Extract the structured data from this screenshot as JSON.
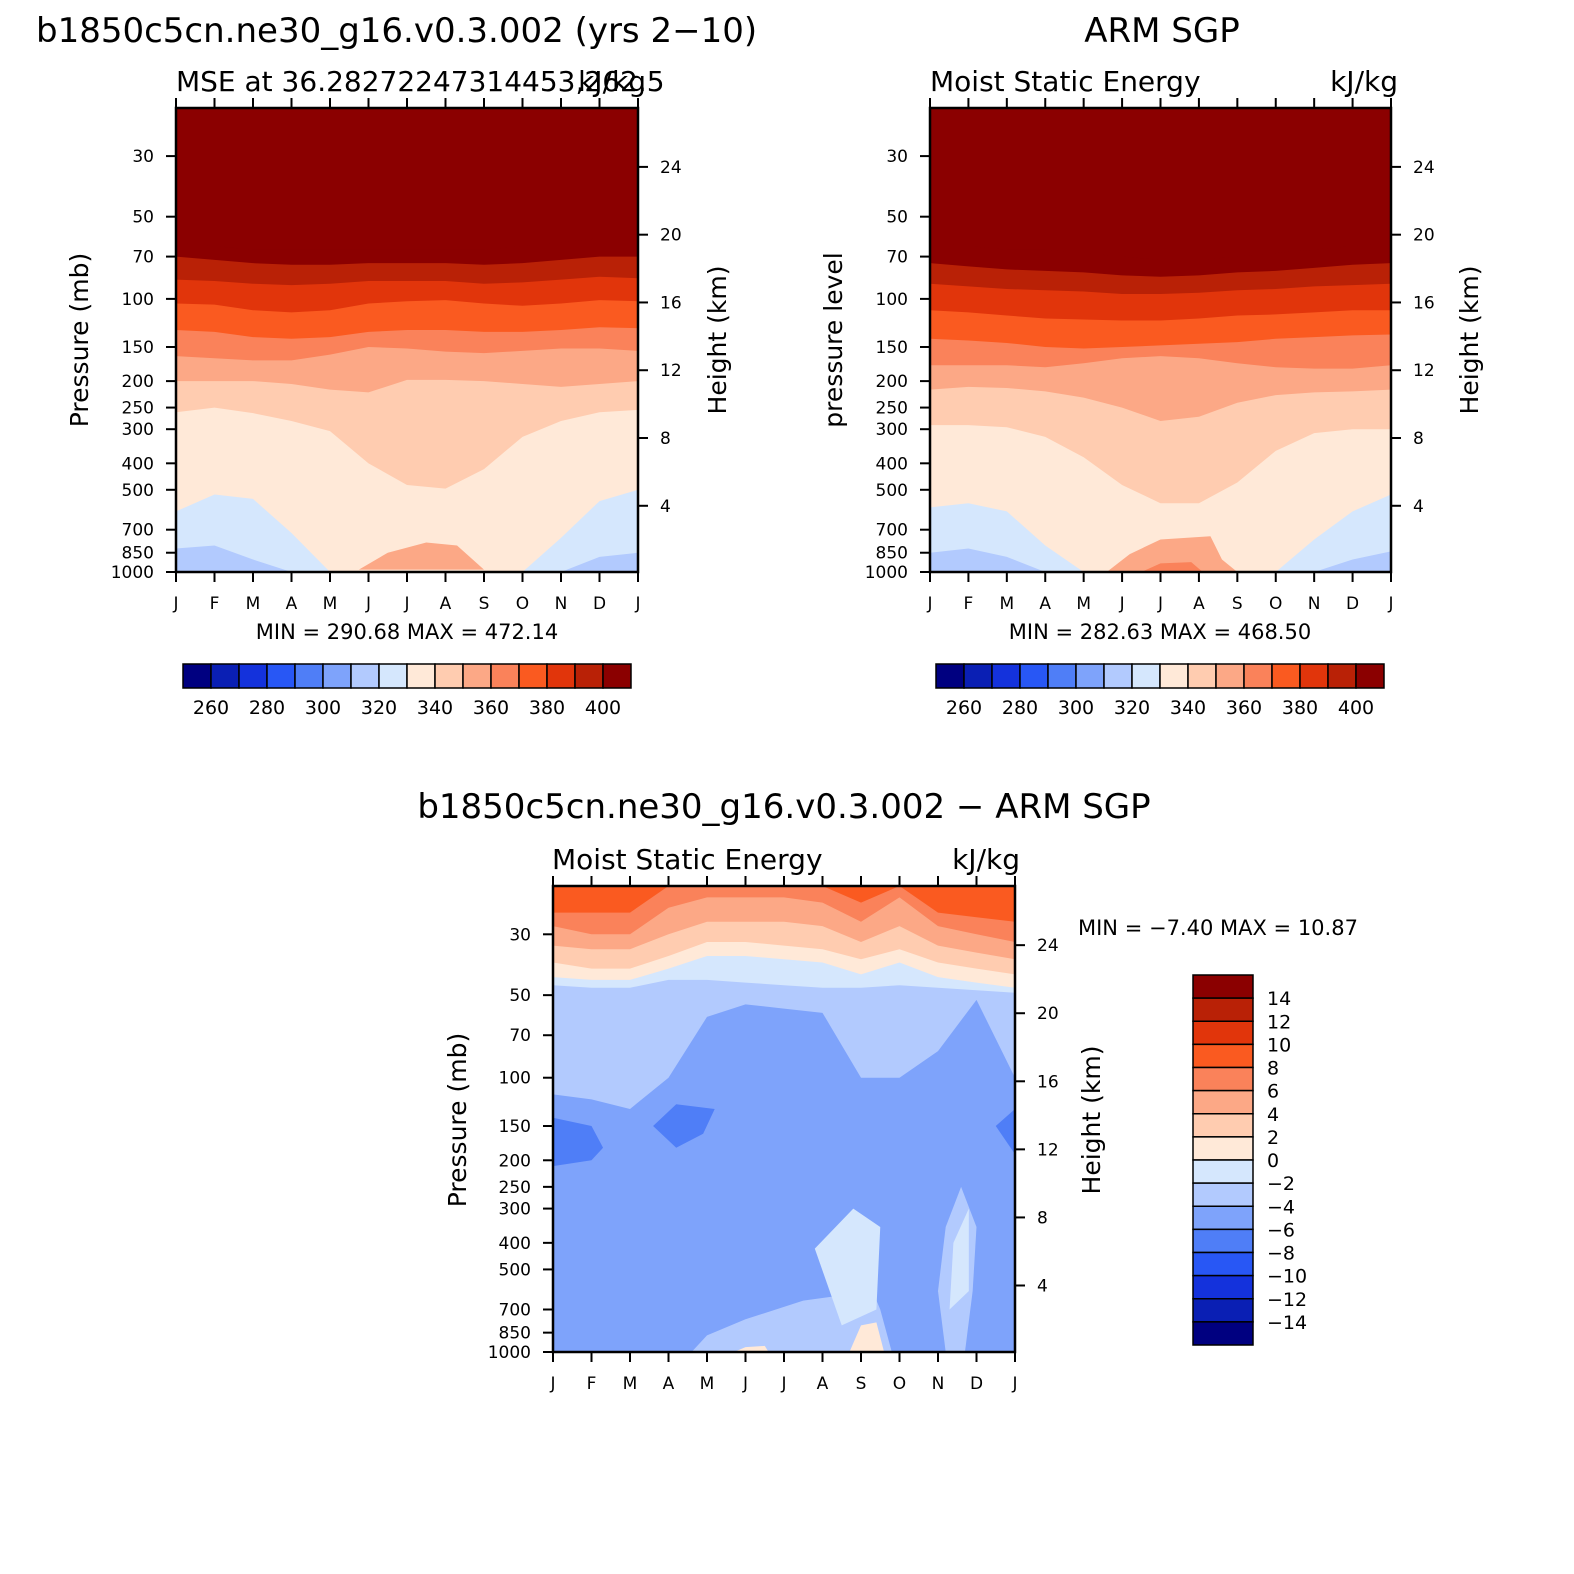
{
  "chart_data": [
    {
      "type": "heatmap",
      "id": "model",
      "title": "b1850c5cn.ne30_g16.v0.3.002 (yrs 2−10)",
      "subtitle_left": "MSE at 36.28272247314453,262.5",
      "subtitle_right": "kJ/kg",
      "ylabel": "Pressure (mb)",
      "ylabel_right": "Height (km)",
      "stats": "MIN =  290.68  MAX =  472.14",
      "x_ticks": [
        "J",
        "F",
        "M",
        "A",
        "M",
        "J",
        "J",
        "A",
        "S",
        "O",
        "N",
        "D",
        "J"
      ],
      "y_ticks": [
        "30",
        "50",
        "70",
        "100",
        "150",
        "200",
        "250",
        "300",
        "400",
        "500",
        "700",
        "850",
        "1000"
      ],
      "y_ticks_right": [
        "24",
        "20",
        "16",
        "12",
        "8",
        "4"
      ],
      "y_range_mb": [
        20,
        1000
      ],
      "colorbar_labels": [
        "260",
        "280",
        "300",
        "320",
        "340",
        "360",
        "380",
        "400"
      ],
      "isolines": [
        {
          "level": 400,
          "p": [
            62,
            64,
            66,
            66,
            66,
            66,
            66,
            66,
            66,
            64,
            62,
            60,
            60
          ]
        },
        {
          "level": 390,
          "p": [
            70,
            72,
            74,
            75,
            75,
            74,
            74,
            74,
            75,
            74,
            72,
            70,
            70
          ]
        },
        {
          "level": 380,
          "p": [
            85,
            86,
            88,
            89,
            88,
            86,
            86,
            86,
            88,
            87,
            85,
            83,
            84
          ]
        },
        {
          "level": 370,
          "p": [
            104,
            105,
            110,
            112,
            110,
            104,
            102,
            101,
            104,
            106,
            104,
            101,
            102
          ]
        },
        {
          "level": 360,
          "p": [
            130,
            132,
            138,
            140,
            138,
            132,
            130,
            130,
            132,
            132,
            130,
            127,
            128
          ]
        },
        {
          "level": 350,
          "p": [
            162,
            165,
            168,
            168,
            160,
            150,
            152,
            156,
            158,
            155,
            152,
            152,
            155
          ]
        },
        {
          "level": 340,
          "p": [
            200,
            200,
            200,
            205,
            215,
            220,
            198,
            198,
            200,
            205,
            210,
            205,
            200
          ]
        },
        {
          "level": 330,
          "p": [
            260,
            250,
            262,
            280,
            305,
            400,
            480,
            495,
            420,
            320,
            280,
            260,
            255
          ]
        },
        {
          "level": 320,
          "p": [
            600,
            520,
            540,
            720,
            1000,
            1000,
            1000,
            1000,
            1000,
            1000,
            750,
            550,
            500
          ]
        },
        {
          "level": 310,
          "p": [
            820,
            800,
            900,
            1000,
            1000,
            1000,
            1000,
            1000,
            1000,
            1000,
            1000,
            880,
            850
          ]
        },
        {
          "level": 300,
          "p": [
            1000,
            1000,
            1000,
            1000,
            1000,
            1000,
            1000,
            1000,
            1000,
            1000,
            1000,
            1000,
            1000
          ]
        }
      ],
      "blobs": [
        {
          "level": 340,
          "points": [
            [
              4.75,
              980
            ],
            [
              5.5,
              850
            ],
            [
              6.5,
              780
            ],
            [
              7.3,
              800
            ],
            [
              8.0,
              980
            ]
          ]
        }
      ]
    },
    {
      "type": "heatmap",
      "id": "obs",
      "title": "ARM SGP",
      "subtitle_left": "Moist Static Energy",
      "subtitle_right": "kJ/kg",
      "ylabel": "pressure level",
      "ylabel_right": "Height (km)",
      "stats": "MIN =  282.63  MAX =  468.50",
      "x_ticks": [
        "J",
        "F",
        "M",
        "A",
        "M",
        "J",
        "J",
        "A",
        "S",
        "O",
        "N",
        "D",
        "J"
      ],
      "y_ticks": [
        "30",
        "50",
        "70",
        "100",
        "150",
        "200",
        "250",
        "300",
        "400",
        "500",
        "700",
        "850",
        "1000"
      ],
      "y_ticks_right": [
        "24",
        "20",
        "16",
        "12",
        "8",
        "4"
      ],
      "y_range_mb": [
        20,
        1000
      ],
      "colorbar_labels": [
        "260",
        "280",
        "300",
        "320",
        "340",
        "360",
        "380",
        "400"
      ],
      "isolines": [
        {
          "level": 400,
          "p": [
            62,
            64,
            66,
            66,
            68,
            70,
            72,
            72,
            70,
            68,
            66,
            64,
            62
          ]
        },
        {
          "level": 390,
          "p": [
            74,
            76,
            78,
            79,
            80,
            82,
            83,
            82,
            80,
            79,
            77,
            75,
            74
          ]
        },
        {
          "level": 380,
          "p": [
            88,
            90,
            92,
            93,
            94,
            96,
            96,
            95,
            93,
            92,
            90,
            89,
            88
          ]
        },
        {
          "level": 370,
          "p": [
            110,
            112,
            115,
            118,
            119,
            120,
            120,
            118,
            115,
            114,
            112,
            110,
            110
          ]
        },
        {
          "level": 360,
          "p": [
            140,
            142,
            145,
            150,
            152,
            150,
            148,
            146,
            144,
            140,
            138,
            136,
            135
          ]
        },
        {
          "level": 350,
          "p": [
            175,
            175,
            175,
            178,
            172,
            165,
            162,
            165,
            172,
            178,
            180,
            180,
            175
          ]
        },
        {
          "level": 340,
          "p": [
            215,
            210,
            212,
            218,
            230,
            250,
            280,
            270,
            240,
            225,
            220,
            218,
            215
          ]
        },
        {
          "level": 330,
          "p": [
            290,
            290,
            295,
            320,
            380,
            480,
            560,
            560,
            470,
            360,
            310,
            300,
            300
          ]
        },
        {
          "level": 320,
          "p": [
            580,
            560,
            600,
            800,
            1000,
            1000,
            1000,
            1000,
            1000,
            1000,
            760,
            600,
            520
          ]
        },
        {
          "level": 310,
          "p": [
            850,
            820,
            880,
            1000,
            1000,
            1000,
            1000,
            1000,
            1000,
            1000,
            1000,
            900,
            840
          ]
        },
        {
          "level": 300,
          "p": [
            1000,
            1000,
            1000,
            1000,
            1000,
            1000,
            1000,
            1000,
            1000,
            1000,
            1000,
            1000,
            1000
          ]
        }
      ],
      "blobs": [
        {
          "level": 340,
          "points": [
            [
              4.6,
              1000
            ],
            [
              5.2,
              860
            ],
            [
              6.0,
              760
            ],
            [
              7.3,
              740
            ],
            [
              7.6,
              900
            ],
            [
              8.0,
              1000
            ]
          ]
        },
        {
          "level": 350,
          "points": [
            [
              5.5,
              1000
            ],
            [
              6.0,
              930
            ],
            [
              6.8,
              920
            ],
            [
              7.1,
              1000
            ]
          ]
        }
      ]
    },
    {
      "type": "heatmap",
      "id": "diff",
      "title": "b1850c5cn.ne30_g16.v0.3.002 − ARM SGP",
      "subtitle_left": "Moist Static Energy",
      "subtitle_right": "kJ/kg",
      "ylabel": "Pressure (mb)",
      "ylabel_right": "Height (km)",
      "stats": "MIN =   −7.40  MAX =   10.87",
      "x_ticks": [
        "J",
        "F",
        "M",
        "A",
        "M",
        "J",
        "J",
        "A",
        "S",
        "O",
        "N",
        "D",
        "J"
      ],
      "y_ticks": [
        "30",
        "50",
        "70",
        "100",
        "150",
        "200",
        "250",
        "300",
        "400",
        "500",
        "700",
        "850",
        "1000"
      ],
      "y_ticks_right": [
        "24",
        "20",
        "16",
        "12",
        "8",
        "4"
      ],
      "y_range_mb": [
        20,
        1000
      ],
      "colorbar_labels": [
        "14",
        "12",
        "10",
        "8",
        "6",
        "4",
        "2",
        "0",
        "−2",
        "−4",
        "−6",
        "−8",
        "−10",
        "−12",
        "−14"
      ],
      "isolines": [
        {
          "level": 6,
          "p": [
            25,
            25,
            25,
            20,
            20,
            20,
            20,
            20,
            23,
            20,
            25,
            26,
            27
          ]
        },
        {
          "level": 4,
          "p": [
            28,
            30,
            30,
            24,
            22,
            22,
            22,
            23,
            27,
            22,
            28,
            30,
            32
          ]
        },
        {
          "level": 2,
          "p": [
            33,
            34,
            34,
            30,
            27,
            27,
            27,
            28,
            32,
            28,
            33,
            35,
            37
          ]
        },
        {
          "level": 0,
          "p": [
            38,
            40,
            40,
            36,
            32,
            32,
            33,
            34,
            37,
            34,
            38,
            40,
            42
          ]
        },
        {
          "level": -2,
          "p": [
            43,
            44,
            44,
            40,
            36,
            36,
            37,
            38,
            42,
            38,
            43,
            45,
            47
          ]
        },
        {
          "level": -4,
          "p": [
            46,
            47,
            47,
            44,
            44,
            45,
            46,
            47,
            47,
            46,
            47,
            48,
            49
          ]
        },
        {
          "level": -6,
          "p": [
            115,
            120,
            130,
            100,
            60,
            54,
            56,
            58,
            100,
            100,
            80,
            52,
            100
          ]
        }
      ],
      "blobs": [
        {
          "level": -8,
          "points": [
            [
              0,
              140
            ],
            [
              1,
              150
            ],
            [
              1.3,
              180
            ],
            [
              1,
              200
            ],
            [
              0,
              210
            ]
          ]
        },
        {
          "level": -8,
          "points": [
            [
              2.6,
              150
            ],
            [
              3.2,
              125
            ],
            [
              4.2,
              130
            ],
            [
              3.9,
              160
            ],
            [
              3.2,
              180
            ]
          ]
        },
        {
          "level": -8,
          "points": [
            [
              12,
              130
            ],
            [
              11.5,
              150
            ],
            [
              12,
              190
            ]
          ]
        },
        {
          "level": -4,
          "points": [
            [
              3.6,
              1000
            ],
            [
              4,
              870
            ],
            [
              5,
              760
            ],
            [
              6.5,
              650
            ],
            [
              8.3,
              600
            ],
            [
              8.5,
              700
            ],
            [
              8.8,
              1000
            ]
          ]
        },
        {
          "level": -4,
          "points": [
            [
              10.2,
              1000
            ],
            [
              10,
              600
            ],
            [
              10.2,
              350
            ],
            [
              10.6,
              250
            ],
            [
              11,
              350
            ],
            [
              10.9,
              600
            ],
            [
              10.7,
              1000
            ]
          ]
        },
        {
          "level": -2,
          "points": [
            [
              6.8,
              420
            ],
            [
              7.8,
              300
            ],
            [
              8.5,
              350
            ],
            [
              8.4,
              700
            ],
            [
              7.5,
              800
            ]
          ]
        },
        {
          "level": -2,
          "points": [
            [
              10.3,
              700
            ],
            [
              10.4,
              400
            ],
            [
              10.8,
              300
            ],
            [
              10.8,
              600
            ]
          ]
        },
        {
          "level": 0,
          "points": [
            [
              7.7,
              1000
            ],
            [
              8.0,
              800
            ],
            [
              8.4,
              780
            ],
            [
              8.6,
              1000
            ]
          ]
        },
        {
          "level": 0,
          "points": [
            [
              4.7,
              1000
            ],
            [
              5.0,
              960
            ],
            [
              5.5,
              950
            ],
            [
              5.6,
              1000
            ]
          ]
        }
      ]
    }
  ],
  "palettes": {
    "abs": [
      "#000080",
      "#0a1fb4",
      "#1432dc",
      "#2857f5",
      "#4f7ef7",
      "#7ea3fb",
      "#b2cafe",
      "#d5e7fd",
      "#ffe9d8",
      "#ffccb0",
      "#fca886",
      "#fa825a",
      "#fa5a20",
      "#e1350b",
      "#b92106",
      "#8b0000"
    ],
    "diff": [
      "#000080",
      "#0a1fb4",
      "#1432dc",
      "#2857f5",
      "#4f7ef7",
      "#7ea3fb",
      "#b2cafe",
      "#d5e7fd",
      "#ffe9d8",
      "#ffccb0",
      "#fca886",
      "#fa825a",
      "#fa5a20",
      "#e1350b",
      "#b92106",
      "#8b0000"
    ]
  }
}
